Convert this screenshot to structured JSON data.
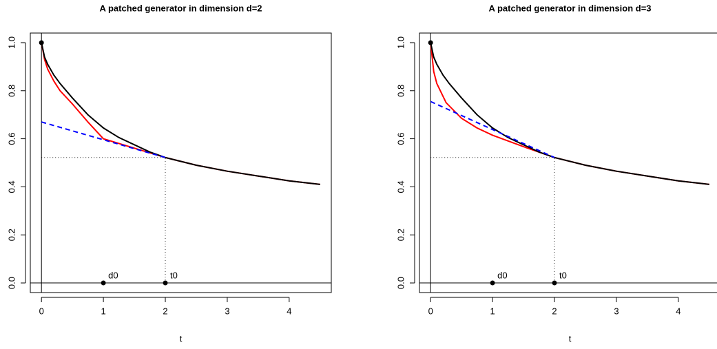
{
  "chart_data": [
    {
      "type": "line",
      "title": "A patched generator  in dimension d=2",
      "xlabel": "t",
      "xlim": [
        -0.18,
        4.68
      ],
      "ylim": [
        -0.04,
        1.04
      ],
      "xticks": [
        0,
        1,
        2,
        3,
        4
      ],
      "yticks": [
        {
          "value": 0,
          "label": "0.0"
        },
        {
          "value": 0.2,
          "label": "0.2"
        },
        {
          "value": 0.4,
          "label": "0.4"
        },
        {
          "value": 0.6,
          "label": "0.6"
        },
        {
          "value": 0.8,
          "label": "0.8"
        },
        {
          "value": 1,
          "label": "1.0"
        }
      ],
      "hline": 0,
      "vline": 0,
      "series": [
        {
          "color": "#ff0000",
          "dash": "solid",
          "width": 2,
          "x": [
            0,
            0.05,
            0.1,
            0.2,
            0.3,
            0.5,
            0.75,
            1,
            2,
            2.5,
            3,
            3.5,
            4,
            4.5
          ],
          "values": [
            1,
            0.93,
            0.89,
            0.84,
            0.8,
            0.745,
            0.67,
            0.6,
            0.522,
            0.49,
            0.465,
            0.445,
            0.425,
            0.41
          ]
        },
        {
          "color": "#000000",
          "dash": "solid",
          "width": 2,
          "x": [
            0,
            0.05,
            0.1,
            0.2,
            0.3,
            0.5,
            0.75,
            1,
            1.25,
            1.5,
            1.75,
            2,
            2.5,
            3,
            3.5,
            4,
            4.5
          ],
          "values": [
            1,
            0.94,
            0.91,
            0.865,
            0.83,
            0.77,
            0.7,
            0.645,
            0.605,
            0.575,
            0.545,
            0.522,
            0.49,
            0.465,
            0.445,
            0.425,
            0.41
          ]
        },
        {
          "color": "#0000ff",
          "dash": "dashed",
          "width": 2,
          "x": [
            0,
            2
          ],
          "values": [
            0.67,
            0.522
          ]
        },
        {
          "color": "#000000",
          "dash": "dotted",
          "width": 0.8,
          "x": [
            0,
            2
          ],
          "values": [
            0.522,
            0.522
          ]
        },
        {
          "color": "#000000",
          "dash": "dotted",
          "width": 0.8,
          "x": [
            2,
            2
          ],
          "values": [
            0,
            0.522
          ]
        }
      ],
      "points": [
        {
          "x": 0,
          "y": 1
        },
        {
          "x": 1,
          "y": 0,
          "label": "d0"
        },
        {
          "x": 2,
          "y": 0,
          "label": "t0"
        }
      ]
    },
    {
      "type": "line",
      "title": "A patched generator  in dimension d=3",
      "xlabel": "t",
      "xlim": [
        -0.18,
        4.68
      ],
      "ylim": [
        -0.04,
        1.04
      ],
      "xticks": [
        0,
        1,
        2,
        3,
        4
      ],
      "yticks": [
        {
          "value": 0,
          "label": "0.0"
        },
        {
          "value": 0.2,
          "label": "0.2"
        },
        {
          "value": 0.4,
          "label": "0.4"
        },
        {
          "value": 0.6,
          "label": "0.6"
        },
        {
          "value": 0.8,
          "label": "0.8"
        },
        {
          "value": 1,
          "label": "1.0"
        }
      ],
      "hline": 0,
      "vline": 0,
      "series": [
        {
          "color": "#ff0000",
          "dash": "solid",
          "width": 2,
          "x": [
            0,
            0.05,
            0.1,
            0.25,
            0.5,
            0.75,
            1,
            1.5,
            2,
            2.5,
            3,
            3.5,
            4,
            4.5
          ],
          "values": [
            1,
            0.88,
            0.83,
            0.75,
            0.685,
            0.645,
            0.615,
            0.567,
            0.522,
            0.49,
            0.465,
            0.445,
            0.425,
            0.41
          ]
        },
        {
          "color": "#000000",
          "dash": "solid",
          "width": 2,
          "x": [
            0,
            0.05,
            0.1,
            0.2,
            0.3,
            0.5,
            0.75,
            1,
            1.25,
            1.5,
            1.75,
            2,
            2.5,
            3,
            3.5,
            4,
            4.5
          ],
          "values": [
            1,
            0.94,
            0.91,
            0.865,
            0.83,
            0.77,
            0.7,
            0.645,
            0.605,
            0.575,
            0.545,
            0.522,
            0.49,
            0.465,
            0.445,
            0.425,
            0.41
          ]
        },
        {
          "color": "#0000ff",
          "dash": "dashed",
          "width": 2,
          "x": [
            0,
            2
          ],
          "values": [
            0.755,
            0.522
          ]
        },
        {
          "color": "#000000",
          "dash": "dotted",
          "width": 0.8,
          "x": [
            0,
            2
          ],
          "values": [
            0.522,
            0.522
          ]
        },
        {
          "color": "#000000",
          "dash": "dotted",
          "width": 0.8,
          "x": [
            2,
            2
          ],
          "values": [
            0,
            0.522
          ]
        }
      ],
      "points": [
        {
          "x": 0,
          "y": 1
        },
        {
          "x": 1,
          "y": 0,
          "label": "d0"
        },
        {
          "x": 2,
          "y": 0,
          "label": "t0"
        }
      ]
    }
  ]
}
